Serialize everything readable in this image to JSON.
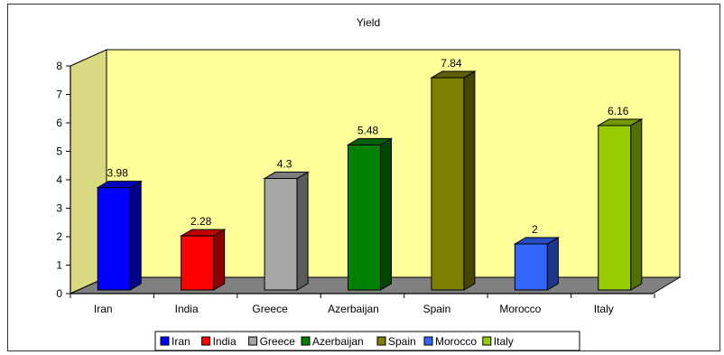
{
  "chart_data": {
    "type": "bar",
    "title": "Yield",
    "categories": [
      "Iran",
      "India",
      "Greece",
      "Azerbaijan",
      "Spain",
      "Morocco",
      "Italy"
    ],
    "values": [
      3.98,
      2.28,
      4.3,
      5.48,
      7.84,
      2,
      6.16
    ],
    "data_labels": [
      "3.98",
      "2.28",
      "4.3",
      "5.48",
      "7.84",
      "2",
      "6.16"
    ],
    "xlabel": "",
    "ylabel": "",
    "ylim": [
      0,
      8
    ],
    "yticks": [
      "0",
      "1",
      "2",
      "3",
      "4",
      "5",
      "6",
      "7",
      "8"
    ],
    "grid": false,
    "style": "3d-column",
    "wall_color": "#FFFF99",
    "floor_color": "#808080",
    "colors": [
      "#0000FF",
      "#FF0000",
      "#A6A6A6",
      "#008000",
      "#808000",
      "#3366FF",
      "#99CC00"
    ],
    "legend": {
      "position": "bottom",
      "entries": [
        "Iran",
        "India",
        "Greece",
        "Azerbaijan",
        "Spain",
        "Morocco",
        "Italy"
      ]
    }
  }
}
